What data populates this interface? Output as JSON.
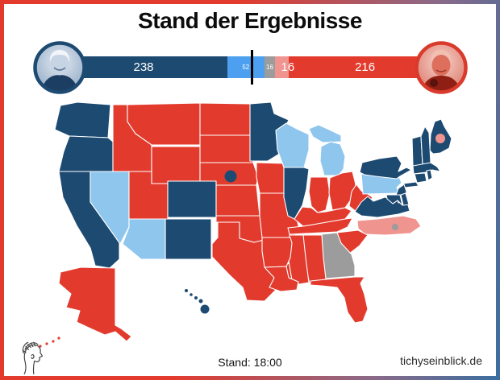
{
  "title": "Stand der Ergebnisse",
  "scoreboard": {
    "left_photo": "Joe Biden portrait, blue duotone",
    "right_photo": "Donald Trump portrait, red duotone",
    "total_electoral_votes": 538,
    "majority_marker": 270,
    "segments": [
      {
        "key": "biden_solid",
        "label": "238",
        "value": 238,
        "color": "#1d4a71"
      },
      {
        "key": "biden_leaning",
        "label": "52",
        "value": 52,
        "color": "#4d9fef"
      },
      {
        "key": "tossup",
        "label": "16",
        "value": 16,
        "color": "#9c9c9c"
      },
      {
        "key": "trump_leaning",
        "label": "16",
        "value": 16,
        "color": "#f09490"
      },
      {
        "key": "trump_solid",
        "label": "216",
        "value": 216,
        "color": "#e23b2e"
      }
    ]
  },
  "map": {
    "colors": {
      "solid_dem": "#1d4a71",
      "lean_dem": "#8fc6ee",
      "tossup": "#9c9c9c",
      "lean_rep": "#f09490",
      "solid_rep": "#e23b2e"
    },
    "states": {
      "WA": "solid_dem",
      "OR": "solid_dem",
      "CA": "solid_dem",
      "CO": "solid_dem",
      "NM": "solid_dem",
      "MN": "solid_dem",
      "IL": "solid_dem",
      "VA": "solid_dem",
      "NY": "solid_dem",
      "NJ": "solid_dem",
      "ME": "solid_dem",
      "VT": "solid_dem",
      "NH": "solid_dem",
      "MA": "solid_dem",
      "CT": "solid_dem",
      "RI": "solid_dem",
      "DE": "solid_dem",
      "MD": "solid_dem",
      "HI": "solid_dem",
      "NE2": "solid_dem",
      "LI": "solid_dem",
      "NV": "lean_dem",
      "AZ": "lean_dem",
      "WI": "lean_dem",
      "MI": "lean_dem",
      "MIUP": "lean_dem",
      "PA": "lean_dem",
      "GA": "tossup",
      "DC": "tossup",
      "NC": "lean_rep",
      "ME2": "lean_rep",
      "ID": "solid_rep",
      "MT": "solid_rep",
      "WY": "solid_rep",
      "UT": "solid_rep",
      "ND": "solid_rep",
      "SD": "solid_rep",
      "NE": "solid_rep",
      "KS": "solid_rep",
      "OK": "solid_rep",
      "TX": "solid_rep",
      "IA": "solid_rep",
      "MO": "solid_rep",
      "IN": "solid_rep",
      "OH": "solid_rep",
      "KY": "solid_rep",
      "TN": "solid_rep",
      "WV": "solid_rep",
      "SC": "solid_rep",
      "AL": "solid_rep",
      "MS": "solid_rep",
      "AR": "solid_rep",
      "LA": "solid_rep",
      "FL": "solid_rep",
      "AK": "solid_rep"
    }
  },
  "footer": {
    "status": "Stand: 18:00",
    "site": "tichyseinblick.de"
  },
  "frame": {
    "border_gradient": [
      "#e23b2e",
      "#8a6a88",
      "#3c6e9f"
    ]
  }
}
